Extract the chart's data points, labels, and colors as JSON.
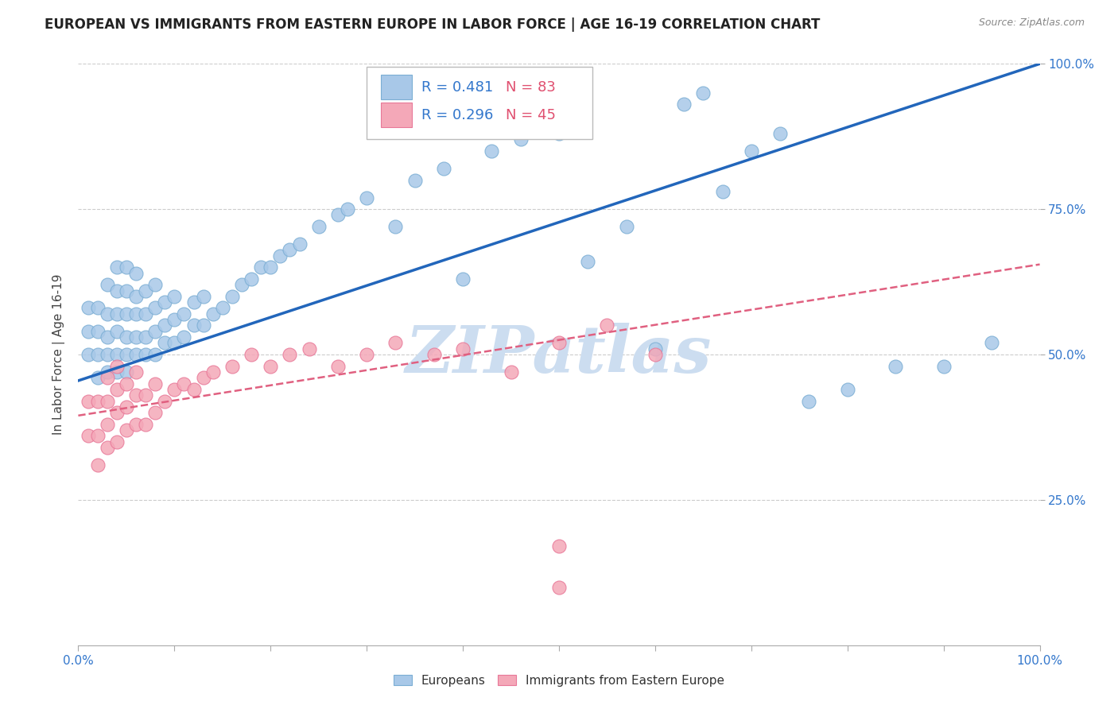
{
  "title": "EUROPEAN VS IMMIGRANTS FROM EASTERN EUROPE IN LABOR FORCE | AGE 16-19 CORRELATION CHART",
  "source": "Source: ZipAtlas.com",
  "ylabel": "In Labor Force | Age 16-19",
  "xlim": [
    0,
    1
  ],
  "ylim": [
    0,
    1
  ],
  "blue_R": 0.481,
  "blue_N": 83,
  "pink_R": 0.296,
  "pink_N": 45,
  "blue_color": "#a8c8e8",
  "blue_edge_color": "#7baed4",
  "pink_color": "#f4a8b8",
  "pink_edge_color": "#e87898",
  "blue_line_color": "#2266bb",
  "pink_line_color": "#e06080",
  "watermark": "ZIPatlas",
  "watermark_color": "#ccddf0",
  "background_color": "#ffffff",
  "grid_color": "#cccccc",
  "blue_trend_y0": 0.455,
  "blue_trend_y1": 1.0,
  "pink_trend_y0": 0.395,
  "pink_trend_y1": 0.655,
  "blue_scatter_x": [
    0.01,
    0.01,
    0.01,
    0.02,
    0.02,
    0.02,
    0.02,
    0.03,
    0.03,
    0.03,
    0.03,
    0.03,
    0.04,
    0.04,
    0.04,
    0.04,
    0.04,
    0.04,
    0.05,
    0.05,
    0.05,
    0.05,
    0.05,
    0.05,
    0.06,
    0.06,
    0.06,
    0.06,
    0.06,
    0.07,
    0.07,
    0.07,
    0.07,
    0.08,
    0.08,
    0.08,
    0.08,
    0.09,
    0.09,
    0.09,
    0.1,
    0.1,
    0.1,
    0.11,
    0.11,
    0.12,
    0.12,
    0.13,
    0.13,
    0.14,
    0.15,
    0.16,
    0.17,
    0.18,
    0.19,
    0.2,
    0.21,
    0.22,
    0.23,
    0.25,
    0.27,
    0.28,
    0.3,
    0.33,
    0.35,
    0.38,
    0.4,
    0.43,
    0.46,
    0.5,
    0.53,
    0.57,
    0.6,
    0.63,
    0.65,
    0.67,
    0.7,
    0.73,
    0.76,
    0.8,
    0.85,
    0.9,
    0.95
  ],
  "blue_scatter_y": [
    0.5,
    0.54,
    0.58,
    0.46,
    0.5,
    0.54,
    0.58,
    0.47,
    0.5,
    0.53,
    0.57,
    0.62,
    0.47,
    0.5,
    0.54,
    0.57,
    0.61,
    0.65,
    0.47,
    0.5,
    0.53,
    0.57,
    0.61,
    0.65,
    0.5,
    0.53,
    0.57,
    0.6,
    0.64,
    0.5,
    0.53,
    0.57,
    0.61,
    0.5,
    0.54,
    0.58,
    0.62,
    0.52,
    0.55,
    0.59,
    0.52,
    0.56,
    0.6,
    0.53,
    0.57,
    0.55,
    0.59,
    0.55,
    0.6,
    0.57,
    0.58,
    0.6,
    0.62,
    0.63,
    0.65,
    0.65,
    0.67,
    0.68,
    0.69,
    0.72,
    0.74,
    0.75,
    0.77,
    0.72,
    0.8,
    0.82,
    0.63,
    0.85,
    0.87,
    0.88,
    0.66,
    0.72,
    0.51,
    0.93,
    0.95,
    0.78,
    0.85,
    0.88,
    0.42,
    0.44,
    0.48,
    0.48,
    0.52
  ],
  "pink_scatter_x": [
    0.01,
    0.01,
    0.02,
    0.02,
    0.02,
    0.03,
    0.03,
    0.03,
    0.03,
    0.04,
    0.04,
    0.04,
    0.04,
    0.05,
    0.05,
    0.05,
    0.06,
    0.06,
    0.06,
    0.07,
    0.07,
    0.08,
    0.08,
    0.09,
    0.1,
    0.11,
    0.12,
    0.13,
    0.14,
    0.16,
    0.18,
    0.2,
    0.22,
    0.24,
    0.27,
    0.3,
    0.33,
    0.37,
    0.4,
    0.45,
    0.5,
    0.55,
    0.6,
    0.5,
    0.5
  ],
  "pink_scatter_y": [
    0.36,
    0.42,
    0.31,
    0.36,
    0.42,
    0.34,
    0.38,
    0.42,
    0.46,
    0.35,
    0.4,
    0.44,
    0.48,
    0.37,
    0.41,
    0.45,
    0.38,
    0.43,
    0.47,
    0.38,
    0.43,
    0.4,
    0.45,
    0.42,
    0.44,
    0.45,
    0.44,
    0.46,
    0.47,
    0.48,
    0.5,
    0.48,
    0.5,
    0.51,
    0.48,
    0.5,
    0.52,
    0.5,
    0.51,
    0.47,
    0.52,
    0.55,
    0.5,
    0.17,
    0.1
  ],
  "tick_fontsize": 11,
  "axis_label_fontsize": 11,
  "title_fontsize": 12
}
